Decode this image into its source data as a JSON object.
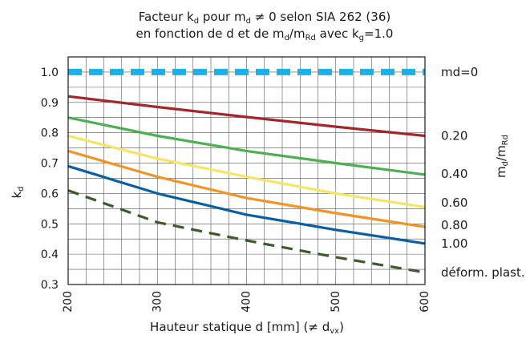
{
  "chart_data": {
    "type": "line",
    "title_line1": {
      "a": "Facteur k",
      "a_sub": "d",
      "b": " pour m",
      "b_sub": "d",
      "c": " ≠ 0 selon SIA 262 (36)"
    },
    "title_line2": {
      "a": "en fonction de d et de m",
      "a_sub": "d",
      "b": "/m",
      "b_sub": "Rd",
      "c": " avec k",
      "c_sub": "g",
      "d": "=1.0"
    },
    "xlabel": {
      "a": "Hauteur statique d [mm] (≠ d",
      "a_sub": "vx",
      "b": ")"
    },
    "ylabel": {
      "a": "k",
      "a_sub": "d"
    },
    "right_axis_label": {
      "a": "m",
      "a_sub": "d",
      "b": "/m",
      "b_sub": "Rd"
    },
    "xlim": [
      200,
      600
    ],
    "ylim": [
      0.3,
      1.05
    ],
    "x_ticks": [
      "200",
      "300",
      "400",
      "500",
      "600"
    ],
    "x_tick_values": [
      200,
      300,
      400,
      500,
      600
    ],
    "y_ticks": [
      "0.3",
      "0.4",
      "0.5",
      "0.6",
      "0.7",
      "0.8",
      "0.9",
      "1.0"
    ],
    "y_tick_values": [
      0.3,
      0.4,
      0.5,
      0.6,
      0.7,
      0.8,
      0.9,
      1.0
    ],
    "grid": true,
    "series": [
      {
        "name": "md=0",
        "color": "#1ab0e8",
        "style": "dash-thick",
        "x": [
          200,
          600
        ],
        "y": [
          1.0,
          1.0
        ]
      },
      {
        "name": "0.20",
        "color": "#a5262a",
        "style": "solid",
        "x": [
          200,
          300,
          400,
          500,
          600
        ],
        "y": [
          0.92,
          0.885,
          0.852,
          0.82,
          0.79
        ]
      },
      {
        "name": "0.40",
        "color": "#4caf50",
        "style": "solid",
        "x": [
          200,
          300,
          400,
          500,
          600
        ],
        "y": [
          0.85,
          0.79,
          0.74,
          0.7,
          0.662
        ]
      },
      {
        "name": "0.60",
        "color": "#f7e463",
        "style": "solid",
        "x": [
          200,
          300,
          400,
          500,
          600
        ],
        "y": [
          0.79,
          0.715,
          0.655,
          0.6,
          0.555
        ]
      },
      {
        "name": "0.80",
        "color": "#f39325",
        "style": "solid",
        "x": [
          200,
          300,
          400,
          500,
          600
        ],
        "y": [
          0.74,
          0.655,
          0.585,
          0.535,
          0.49
        ]
      },
      {
        "name": "1.00",
        "color": "#0a5fa4",
        "style": "solid",
        "x": [
          200,
          300,
          400,
          500,
          600
        ],
        "y": [
          0.69,
          0.6,
          0.53,
          0.48,
          0.435
        ]
      },
      {
        "name": "déform. plast.",
        "color": "#3d5a2a",
        "style": "dash",
        "x": [
          200,
          300,
          400,
          500,
          600
        ],
        "y": [
          0.61,
          0.505,
          0.445,
          0.39,
          0.34
        ]
      }
    ],
    "series_label_values": [
      1.0,
      0.79,
      0.665,
      0.57,
      0.495,
      0.435,
      0.34
    ]
  }
}
